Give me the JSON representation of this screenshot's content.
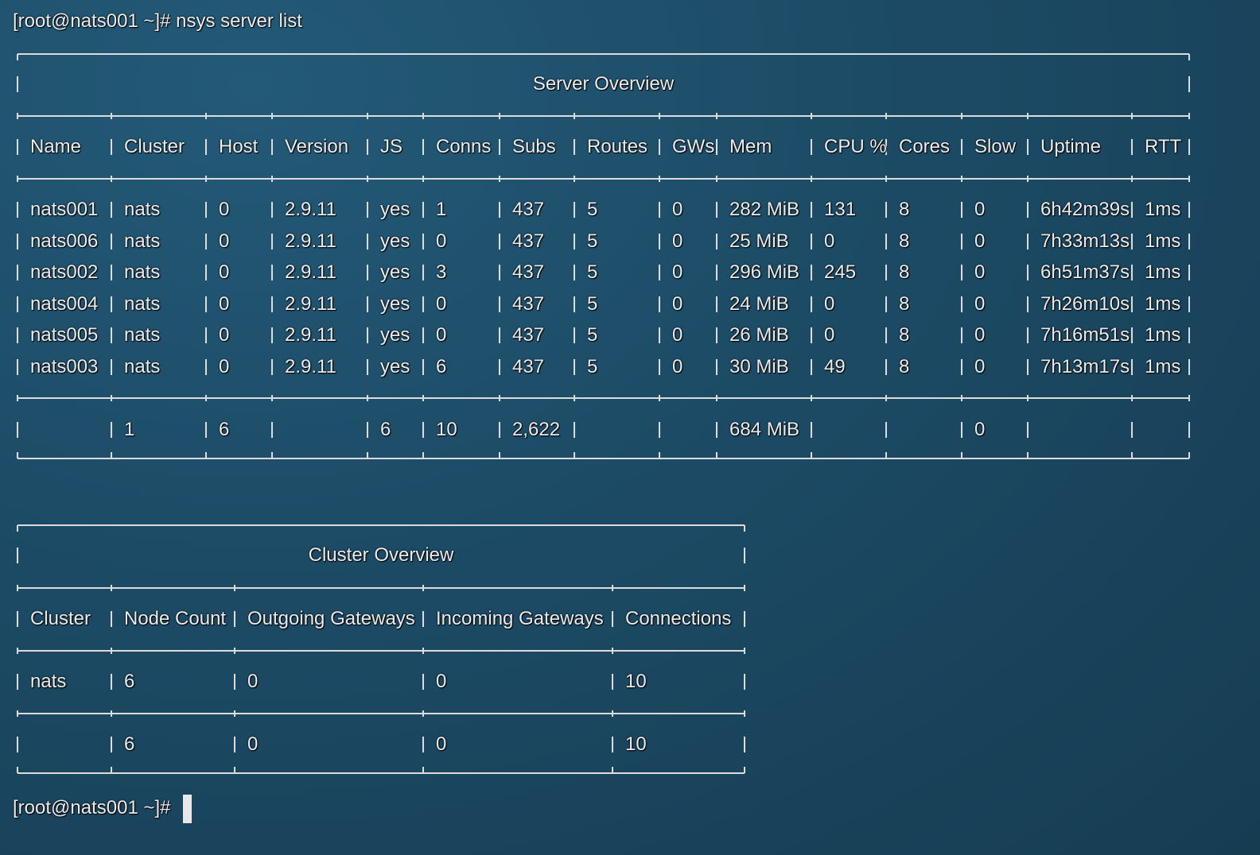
{
  "prompt_command": "[root@nats001 ~]# nsys server list",
  "server_table": {
    "title": "Server Overview",
    "headers": [
      "Name",
      "Cluster",
      "Host",
      "Version",
      "JS",
      "Conns",
      "Subs",
      "Routes",
      "GWs",
      "Mem",
      "CPU %",
      "Cores",
      "Slow",
      "Uptime",
      "RTT"
    ],
    "rows": [
      [
        "nats001",
        "nats",
        "0",
        "2.9.11",
        "yes",
        "1",
        "437",
        "5",
        "0",
        "282 MiB",
        "131",
        "8",
        "0",
        "6h42m39s",
        "1ms"
      ],
      [
        "nats006",
        "nats",
        "0",
        "2.9.11",
        "yes",
        "0",
        "437",
        "5",
        "0",
        "25 MiB",
        "0",
        "8",
        "0",
        "7h33m13s",
        "1ms"
      ],
      [
        "nats002",
        "nats",
        "0",
        "2.9.11",
        "yes",
        "3",
        "437",
        "5",
        "0",
        "296 MiB",
        "245",
        "8",
        "0",
        "6h51m37s",
        "1ms"
      ],
      [
        "nats004",
        "nats",
        "0",
        "2.9.11",
        "yes",
        "0",
        "437",
        "5",
        "0",
        "24 MiB",
        "0",
        "8",
        "0",
        "7h26m10s",
        "1ms"
      ],
      [
        "nats005",
        "nats",
        "0",
        "2.9.11",
        "yes",
        "0",
        "437",
        "5",
        "0",
        "26 MiB",
        "0",
        "8",
        "0",
        "7h16m51s",
        "1ms"
      ],
      [
        "nats003",
        "nats",
        "0",
        "2.9.11",
        "yes",
        "6",
        "437",
        "5",
        "0",
        "30 MiB",
        "49",
        "8",
        "0",
        "7h13m17s",
        "1ms"
      ]
    ],
    "footer": [
      null,
      "1",
      "6",
      null,
      "6",
      "10",
      "2,622",
      null,
      null,
      "684 MiB",
      null,
      null,
      "0",
      null,
      null
    ]
  },
  "cluster_table": {
    "title": "Cluster Overview",
    "headers": [
      "Cluster",
      "Node Count",
      "Outgoing Gateways",
      "Incoming Gateways",
      "Connections"
    ],
    "rows": [
      [
        "nats",
        "6",
        "0",
        "0",
        "10"
      ]
    ],
    "footer": [
      null,
      "6",
      "0",
      "0",
      "10"
    ]
  },
  "prompt_end": "[root@nats001 ~]#"
}
